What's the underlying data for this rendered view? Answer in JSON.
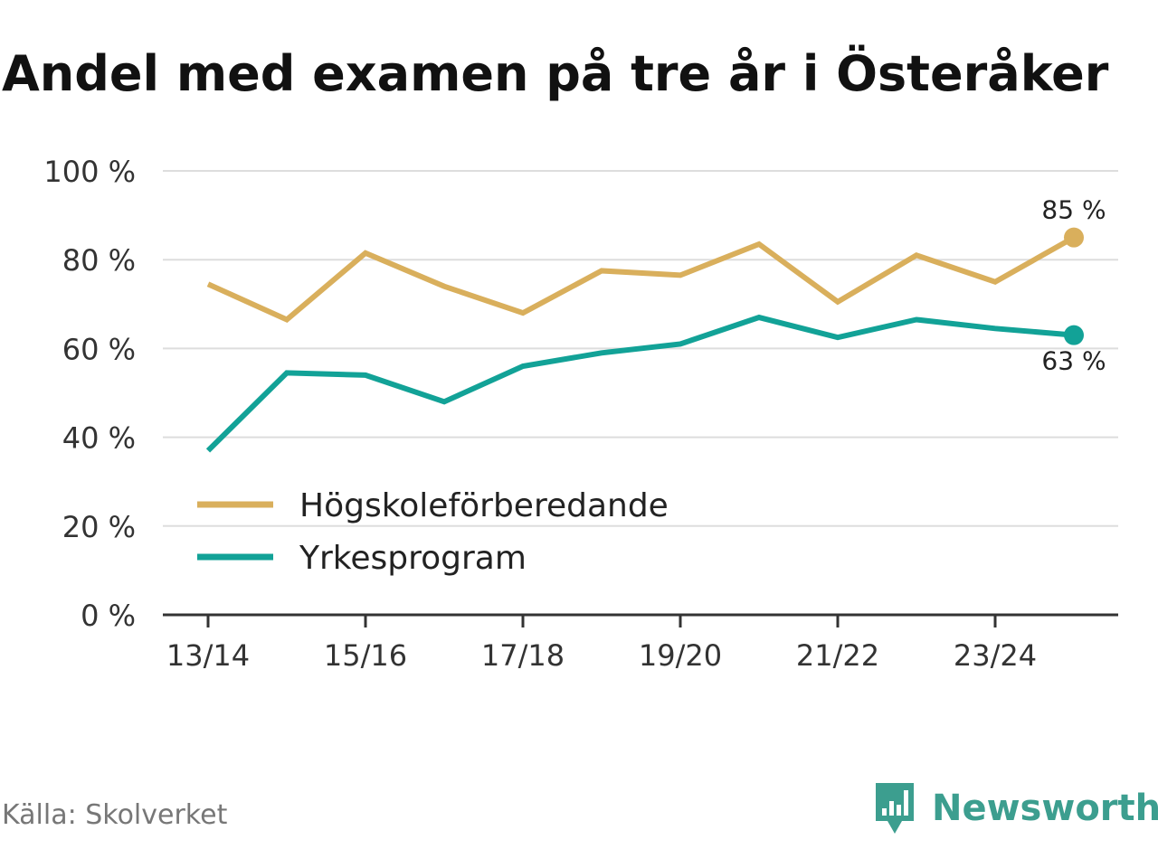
{
  "chart_data": {
    "type": "line",
    "title": "Andel med examen på tre år i Österåker",
    "categories": [
      "13/14",
      "14/15",
      "15/16",
      "16/17",
      "17/18",
      "18/19",
      "19/20",
      "20/21",
      "21/22",
      "22/23",
      "23/24",
      "24/25"
    ],
    "x_tick_labels": [
      "13/14",
      "15/16",
      "17/18",
      "19/20",
      "21/22",
      "23/24"
    ],
    "y_ticks": [
      0,
      20,
      40,
      60,
      80,
      100
    ],
    "y_tick_labels": [
      "0 %",
      "20 %",
      "40 %",
      "60 %",
      "80 %",
      "100 %"
    ],
    "ylim": [
      0,
      100
    ],
    "xlabel": "",
    "ylabel": "",
    "grid": true,
    "legend_position": "bottom-left",
    "series": [
      {
        "name": "Högskoleförberedande",
        "color": "#d9af5c",
        "values": [
          74.5,
          66.5,
          81.5,
          74,
          68,
          77.5,
          76.5,
          83.5,
          70.5,
          81,
          75,
          85
        ],
        "end_label": "85 %"
      },
      {
        "name": "Yrkesprogram",
        "color": "#12a297",
        "values": [
          37,
          54.5,
          54,
          48,
          56,
          59,
          61,
          67,
          62.5,
          66.5,
          64.5,
          63
        ],
        "end_label": "63 %"
      }
    ]
  },
  "source": "Källa: Skolverket",
  "brand": {
    "name": "Newsworthy",
    "icon": "newsworthy-logo-icon",
    "color": "#3c9e8f"
  }
}
